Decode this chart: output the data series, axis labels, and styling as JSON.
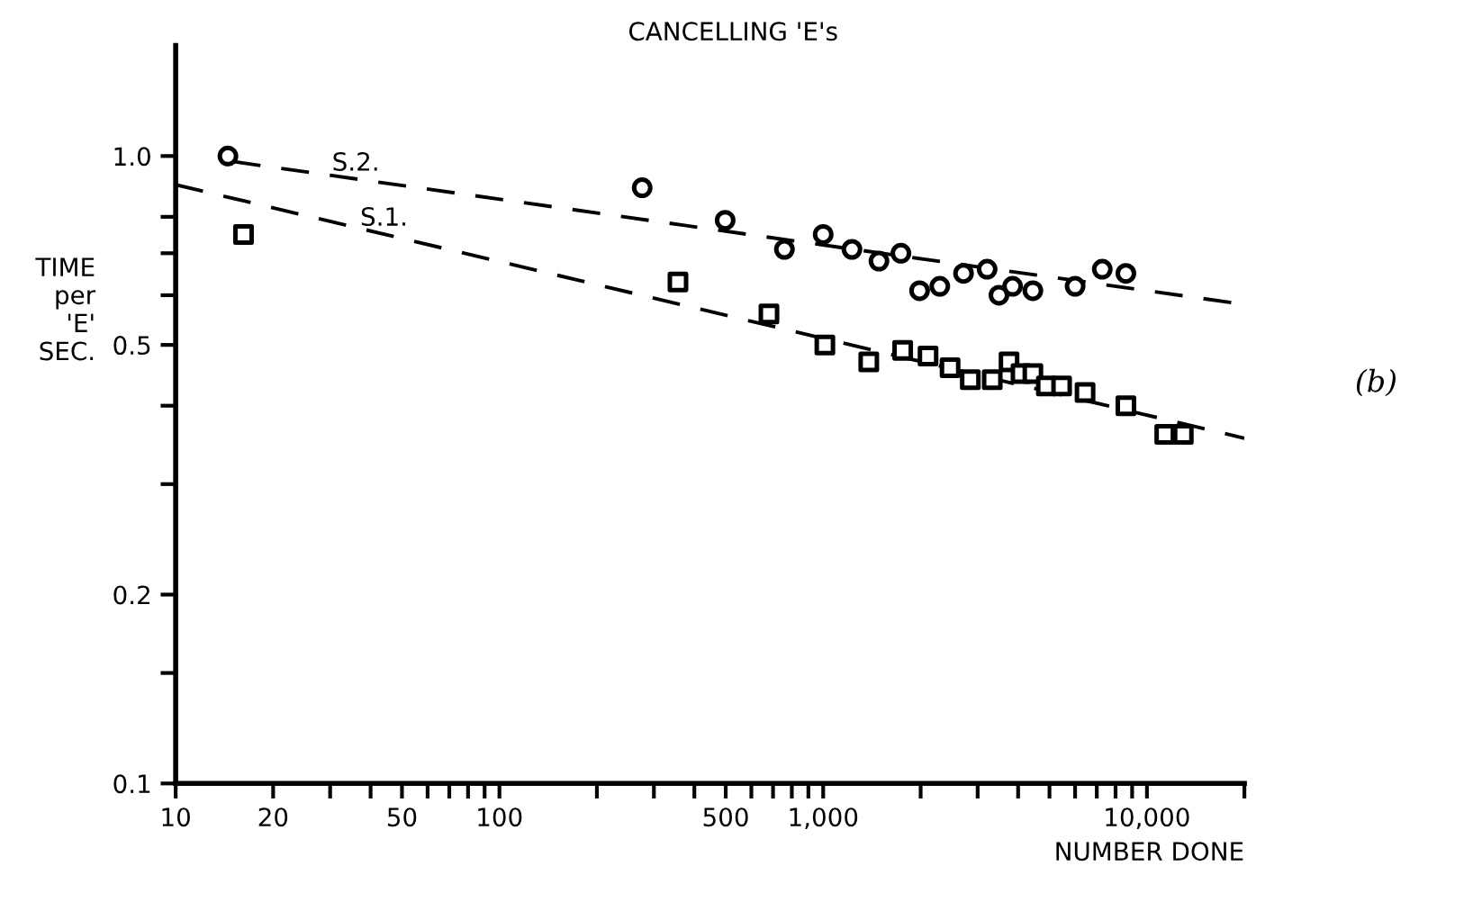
{
  "chart_data": {
    "type": "scatter",
    "title": "CANCELLING 'E's",
    "xlabel": "NUMBER DONE",
    "ylabel": "TIME per 'E' SEC.",
    "log": "xy",
    "xlim": [
      10,
      20000
    ],
    "ylim": [
      0.1,
      1.5
    ],
    "xticks": [
      10,
      20,
      {
        "value": 30,
        "label": null
      },
      {
        "value": 40,
        "label": null
      },
      50,
      {
        "value": 60,
        "label": null
      },
      {
        "value": 70,
        "label": null
      },
      {
        "value": 80,
        "label": null
      },
      {
        "value": 90,
        "label": null
      },
      100,
      {
        "value": 200,
        "label": null
      },
      {
        "value": 300,
        "label": null
      },
      {
        "value": 400,
        "label": null
      },
      500,
      {
        "value": 600,
        "label": null
      },
      {
        "value": 700,
        "label": null
      },
      {
        "value": 800,
        "label": null
      },
      {
        "value": 900,
        "label": null
      },
      {
        "value": 1000,
        "label": "1,000"
      },
      {
        "value": 2000,
        "label": null
      },
      {
        "value": 3000,
        "label": null
      },
      {
        "value": 4000,
        "label": null
      },
      {
        "value": 5000,
        "label": null
      },
      {
        "value": 6000,
        "label": null
      },
      {
        "value": 7000,
        "label": null
      },
      {
        "value": 8000,
        "label": null
      },
      {
        "value": 9000,
        "label": null
      },
      {
        "value": 10000,
        "label": "10,000"
      },
      {
        "value": 20000,
        "label": null
      }
    ],
    "yticks": [
      0.1,
      {
        "value": 0.15,
        "label": null
      },
      0.2,
      {
        "value": 0.3,
        "label": null
      },
      {
        "value": 0.4,
        "label": null
      },
      0.5,
      {
        "value": 0.6,
        "label": null
      },
      {
        "value": 0.7,
        "label": null
      },
      {
        "value": 0.8,
        "label": null
      },
      {
        "value": 1.0,
        "label": "1.0"
      }
    ],
    "grid": false,
    "legend": false,
    "series": [
      {
        "marker": "circle",
        "color": "#000000",
        "x": [
          14.5,
          276,
          498,
          759,
          1000,
          1227,
          1487,
          1738,
          1985,
          2292,
          2713,
          3209,
          3491,
          3846,
          4443,
          6000,
          7278,
          8610
        ],
        "values": [
          1.0,
          0.89,
          0.79,
          0.71,
          0.75,
          0.71,
          0.68,
          0.7,
          0.61,
          0.62,
          0.65,
          0.66,
          0.6,
          0.62,
          0.61,
          0.62,
          0.66,
          0.65
        ]
      },
      {
        "marker": "square",
        "color": "#000000",
        "x": [
          16.2,
          356,
          680,
          1012,
          1383,
          1760,
          2108,
          2466,
          2847,
          3328,
          3750,
          4083,
          4443,
          4890,
          5450,
          6440,
          8610,
          11350,
          12950
        ],
        "values": [
          0.75,
          0.63,
          0.56,
          0.5,
          0.47,
          0.49,
          0.48,
          0.46,
          0.44,
          0.44,
          0.47,
          0.45,
          0.45,
          0.43,
          0.43,
          0.42,
          0.4,
          0.36,
          0.36
        ]
      },
      {
        "type": "line",
        "line_style": "dashed",
        "marker": "none",
        "color": "#000000",
        "x": [
          15,
          20000
        ],
        "values": [
          0.98,
          0.58
        ]
      },
      {
        "type": "line",
        "line_style": "dashed",
        "marker": "none",
        "color": "#000000",
        "x": [
          10,
          20000
        ],
        "values": [
          0.9,
          0.355
        ]
      }
    ],
    "annotations": [
      {
        "text": "S.2.",
        "x": 36,
        "y": 0.93
      },
      {
        "text": "S.1.",
        "x": 44,
        "y": 0.76
      },
      "(b)"
    ]
  }
}
